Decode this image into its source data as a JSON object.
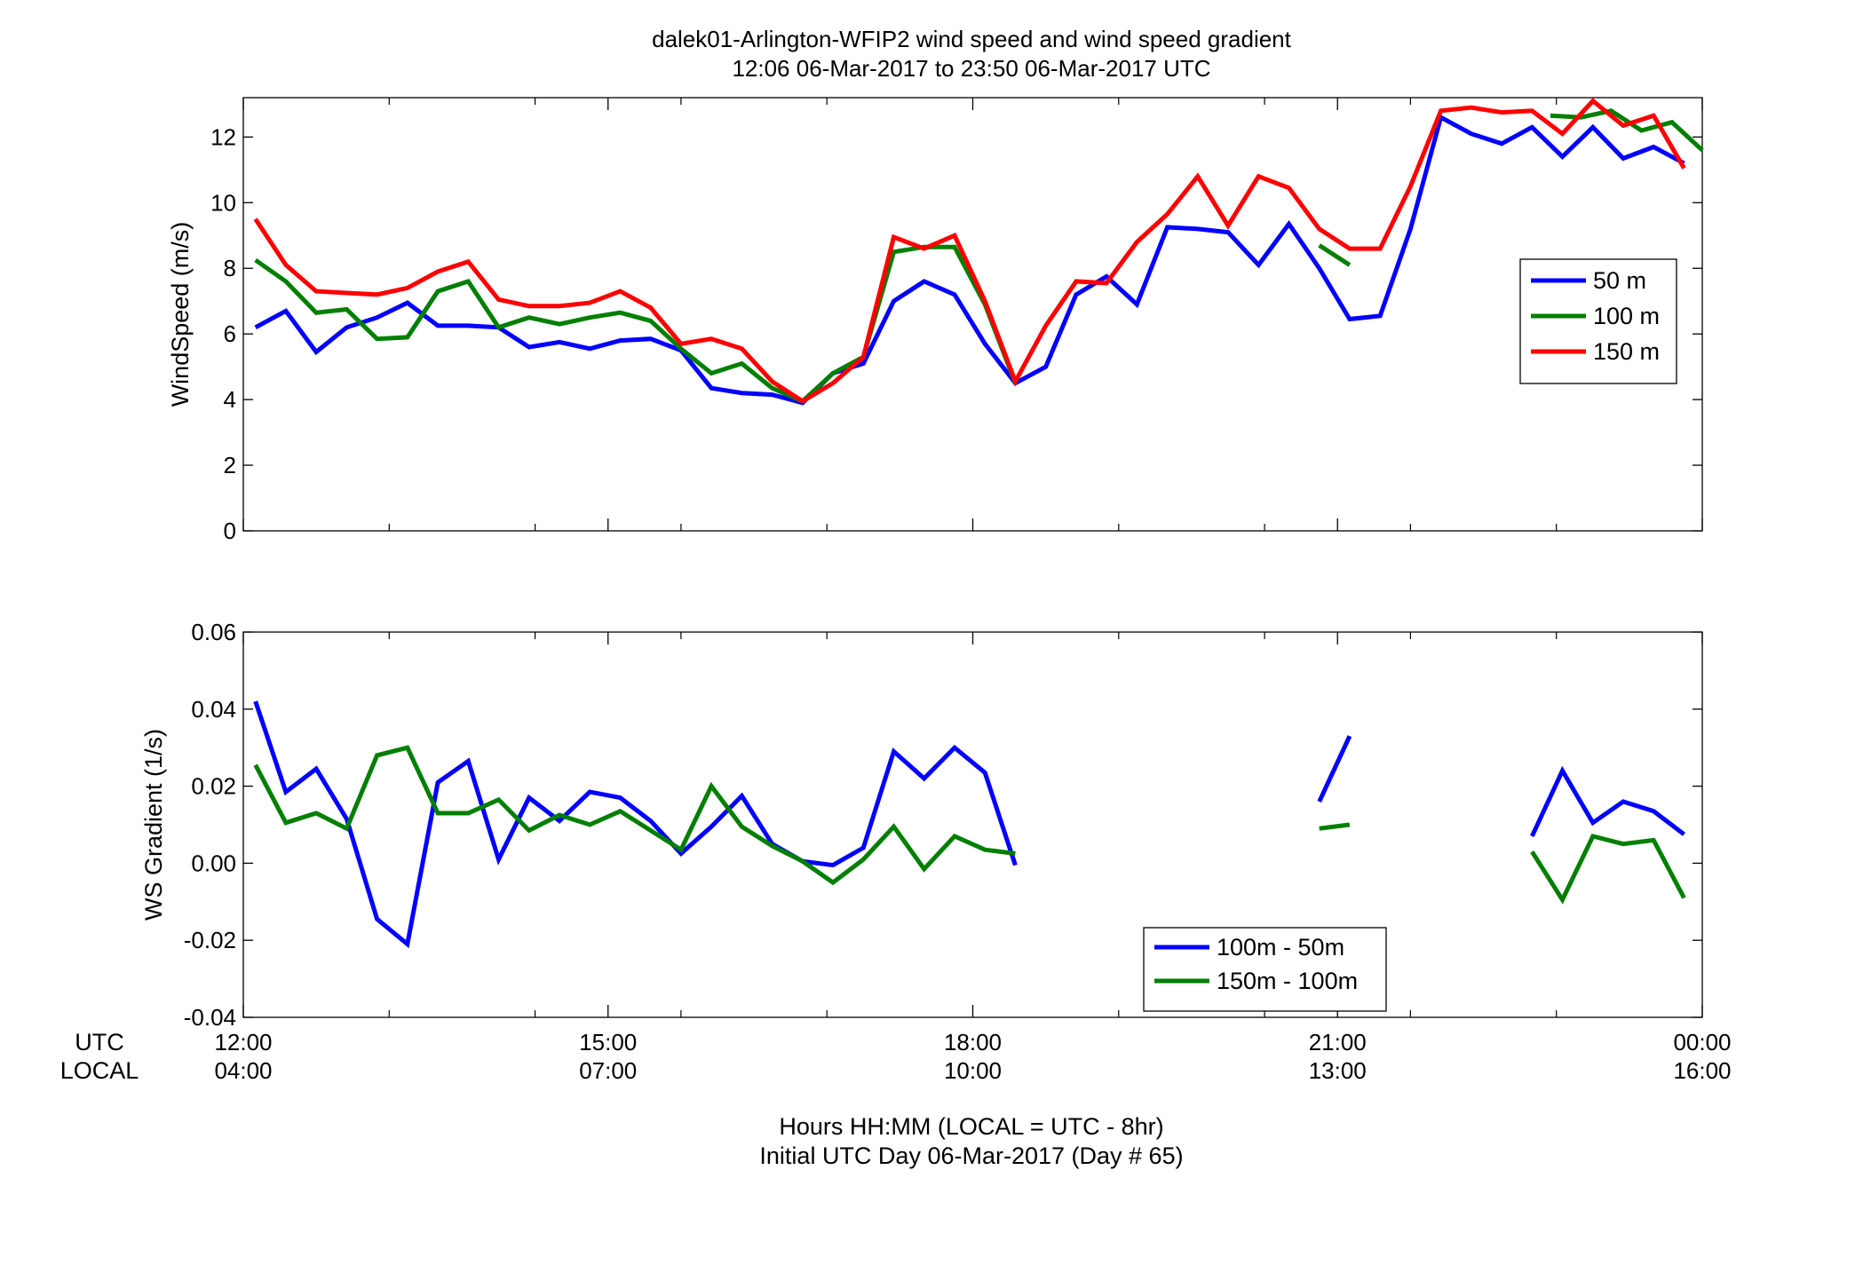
{
  "title_line1": "dalek01-Arlington-WFIP2  wind speed and wind speed gradient",
  "title_line2": "12:06 06-Mar-2017 to 23:50 06-Mar-2017  UTC",
  "footer_line1": "Hours HH:MM  (LOCAL = UTC - 8hr)",
  "footer_line2": "Initial UTC Day 06-Mar-2017 (Day # 65)",
  "row_label_utc": "UTC",
  "row_label_local": "LOCAL",
  "colors": {
    "blue": "#0000ff",
    "green": "#007f00",
    "red": "#ff0000"
  },
  "chart_data": [
    {
      "type": "line",
      "ylabel": "WindSpeed (m/s)",
      "ylim": [
        0,
        13.2
      ],
      "yticks": [
        0,
        2,
        4,
        6,
        8,
        10,
        12
      ],
      "x_unit": "hours UTC on 06-Mar-2017 (24 = 00:00 next day)",
      "xlim": [
        12,
        24
      ],
      "xticks": [
        12,
        15,
        18,
        21,
        24
      ],
      "xtick_labels_utc": [
        "12:00",
        "15:00",
        "18:00",
        "21:00",
        "00:00"
      ],
      "xtick_labels_local": [
        "04:00",
        "07:00",
        "10:00",
        "13:00",
        "16:00"
      ],
      "minor_xticks": [
        13.2,
        14.4,
        15.6,
        16.8,
        19.2,
        20.4,
        21.6,
        22.8
      ],
      "grid": false,
      "legend_position": "right",
      "series": [
        {
          "name": "50 m",
          "color": "#0000ff",
          "x": [
            12.1,
            12.35,
            12.6,
            12.85,
            13.1,
            13.35,
            13.6,
            13.85,
            14.1,
            14.35,
            14.6,
            14.85,
            15.1,
            15.35,
            15.6,
            15.85,
            16.1,
            16.35,
            16.6,
            16.85,
            17.1,
            17.35,
            17.6,
            17.85,
            18.1,
            18.35,
            18.6,
            18.85,
            19.1,
            19.35,
            19.6,
            19.85,
            20.1,
            20.35,
            20.6,
            20.85,
            21.1,
            21.35,
            21.6,
            21.85,
            22.1,
            22.35,
            22.6,
            22.85,
            23.1,
            23.35,
            23.6,
            23.85
          ],
          "y": [
            6.2,
            6.7,
            5.45,
            6.2,
            6.5,
            6.95,
            6.25,
            6.25,
            6.2,
            5.6,
            5.75,
            5.55,
            5.8,
            5.85,
            5.5,
            4.35,
            4.2,
            4.15,
            3.9,
            4.8,
            5.1,
            7.0,
            7.6,
            7.2,
            5.7,
            4.5,
            5.0,
            7.2,
            7.75,
            6.9,
            9.25,
            9.2,
            9.1,
            8.1,
            9.35,
            8.0,
            6.45,
            6.55,
            9.2,
            12.6,
            12.1,
            11.8,
            12.3,
            11.4,
            12.3,
            11.35,
            11.7,
            11.2
          ]
        },
        {
          "name": "100 m",
          "color": "#007f00",
          "x": [
            12.1,
            12.35,
            12.6,
            12.85,
            13.1,
            13.35,
            13.6,
            13.85,
            14.1,
            14.35,
            14.6,
            14.85,
            15.1,
            15.35,
            15.6,
            15.85,
            16.1,
            16.35,
            16.6,
            16.85,
            17.1,
            17.35,
            17.6,
            17.85,
            18.1,
            18.35,
            null,
            20.85,
            21.1,
            null,
            22.75,
            23.0,
            23.25,
            23.5,
            23.75,
            24.0
          ],
          "y": [
            8.25,
            7.6,
            6.65,
            6.75,
            5.85,
            5.9,
            7.3,
            7.6,
            6.2,
            6.5,
            6.3,
            6.5,
            6.65,
            6.4,
            5.55,
            4.8,
            5.1,
            4.35,
            3.95,
            4.8,
            5.3,
            8.5,
            8.65,
            8.65,
            6.9,
            4.5,
            null,
            8.7,
            8.1,
            null,
            12.65,
            12.6,
            12.8,
            12.2,
            12.45,
            11.6
          ]
        },
        {
          "name": "150 m",
          "color": "#ff0000",
          "x": [
            12.1,
            12.35,
            12.6,
            12.85,
            13.1,
            13.35,
            13.6,
            13.85,
            14.1,
            14.35,
            14.6,
            14.85,
            15.1,
            15.35,
            15.6,
            15.85,
            16.1,
            16.35,
            16.6,
            16.85,
            17.1,
            17.35,
            17.6,
            17.85,
            18.1,
            18.35,
            18.6,
            18.85,
            19.1,
            19.35,
            19.6,
            19.85,
            20.1,
            20.35,
            20.6,
            20.85,
            21.1,
            21.35,
            21.6,
            21.85,
            22.1,
            22.35,
            22.6,
            22.85,
            23.1,
            23.35,
            23.6,
            23.85
          ],
          "y": [
            9.5,
            8.1,
            7.3,
            7.25,
            7.2,
            7.4,
            7.9,
            8.2,
            7.05,
            6.85,
            6.85,
            6.95,
            7.3,
            6.8,
            5.7,
            5.85,
            5.55,
            4.55,
            3.95,
            4.5,
            5.3,
            8.95,
            8.6,
            9.0,
            7.0,
            4.55,
            6.25,
            7.6,
            7.55,
            8.8,
            9.65,
            10.8,
            9.3,
            10.8,
            10.45,
            9.2,
            8.6,
            8.6,
            10.5,
            12.8,
            12.9,
            12.75,
            12.8,
            12.1,
            13.1,
            12.35,
            12.65,
            11.05
          ]
        }
      ]
    },
    {
      "type": "line",
      "ylabel": "WS Gradient (1/s)",
      "ylim": [
        -0.04,
        0.06
      ],
      "yticks": [
        -0.04,
        -0.02,
        0,
        0.02,
        0.04,
        0.06
      ],
      "xlim": [
        12,
        24
      ],
      "xticks": [
        12,
        15,
        18,
        21,
        24
      ],
      "minor_xticks": [
        13.2,
        14.4,
        15.6,
        16.8,
        19.2,
        20.4,
        21.6,
        22.8
      ],
      "grid": false,
      "legend_position": "bottom-center",
      "series": [
        {
          "name": "100m - 50m",
          "color": "#0000ff",
          "x": [
            12.1,
            12.35,
            12.6,
            12.85,
            13.1,
            13.35,
            13.6,
            13.85,
            14.1,
            14.35,
            14.6,
            14.85,
            15.1,
            15.35,
            15.6,
            15.85,
            16.1,
            16.35,
            16.6,
            16.85,
            17.1,
            17.35,
            17.6,
            17.85,
            18.1,
            18.35,
            null,
            20.85,
            21.1,
            null,
            22.6,
            22.85,
            23.1,
            23.35,
            23.6,
            23.85
          ],
          "y": [
            0.042,
            0.0185,
            0.0245,
            0.0115,
            -0.0145,
            -0.021,
            0.021,
            0.0265,
            0.001,
            0.017,
            0.011,
            0.0185,
            0.017,
            0.011,
            0.0025,
            0.0095,
            0.0175,
            0.005,
            0.0005,
            -0.0005,
            0.004,
            0.029,
            0.022,
            0.03,
            0.0235,
            -0.0005,
            null,
            0.016,
            0.033,
            null,
            0.007,
            0.024,
            0.0105,
            0.016,
            0.0135,
            0.0075
          ]
        },
        {
          "name": "150m - 100m",
          "color": "#007f00",
          "x": [
            12.1,
            12.35,
            12.6,
            12.85,
            13.1,
            13.35,
            13.6,
            13.85,
            14.1,
            14.35,
            14.6,
            14.85,
            15.1,
            15.35,
            15.6,
            15.85,
            16.1,
            16.35,
            16.6,
            16.85,
            17.1,
            17.35,
            17.6,
            17.85,
            18.1,
            18.35,
            null,
            20.85,
            21.1,
            null,
            22.6,
            22.85,
            23.1,
            23.35,
            23.6,
            23.85
          ],
          "y": [
            0.0255,
            0.0105,
            0.013,
            0.009,
            0.028,
            0.03,
            0.013,
            0.013,
            0.0165,
            0.0085,
            0.0125,
            0.01,
            0.0135,
            0.0085,
            0.0035,
            0.02,
            0.0095,
            0.0045,
            0.0005,
            -0.005,
            0.001,
            0.0095,
            -0.0015,
            0.007,
            0.0035,
            0.0025,
            null,
            0.009,
            0.01,
            null,
            0.003,
            -0.0095,
            0.007,
            0.005,
            0.006,
            -0.009
          ]
        }
      ]
    }
  ]
}
